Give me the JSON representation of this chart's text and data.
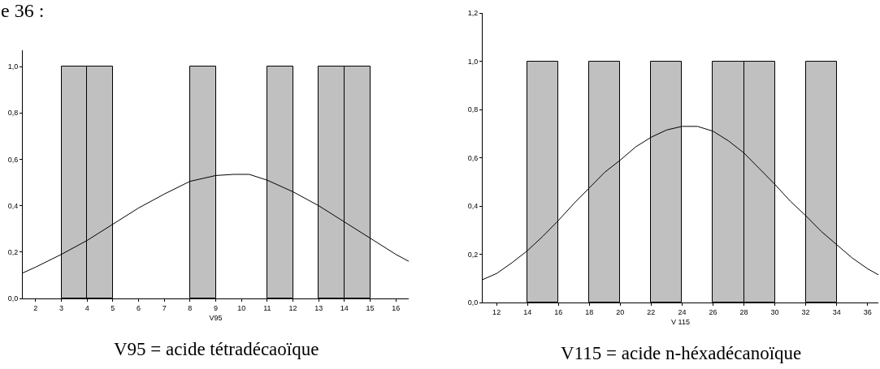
{
  "chart_data": [
    {
      "type": "histogram",
      "title": "e 36 :",
      "xlabel": "V95",
      "annotations": [
        "V95 = acide tétradécaoïque"
      ],
      "bins": [
        3,
        4,
        5,
        6,
        7,
        8,
        9,
        10,
        11,
        12,
        13,
        14,
        15
      ],
      "values": [
        1,
        1,
        0,
        0,
        0,
        1,
        0,
        0,
        1,
        0,
        1,
        1
      ],
      "color": "#c0c0c0",
      "series": [
        {
          "type": "line",
          "color": "#000000",
          "x": [
            1.5,
            2,
            3,
            4,
            5,
            6,
            7,
            8,
            9,
            9.7,
            10,
            10.3,
            11,
            12,
            13,
            14,
            15,
            16,
            16.5
          ],
          "values": [
            0.11,
            0.135,
            0.19,
            0.25,
            0.32,
            0.39,
            0.45,
            0.505,
            0.53,
            0.535,
            0.535,
            0.535,
            0.51,
            0.46,
            0.4,
            0.33,
            0.26,
            0.19,
            0.16
          ]
        }
      ],
      "xlim": [
        1.5,
        16.5
      ],
      "xticks": [
        2,
        3,
        4,
        5,
        6,
        7,
        8,
        9,
        10,
        11,
        12,
        13,
        14,
        15,
        16
      ],
      "ylim": [
        0,
        1.07
      ],
      "yticks": [
        {
          "value": 0,
          "label": "0,0"
        },
        {
          "value": 0.2,
          "label": "0,2"
        },
        {
          "value": 0.4,
          "label": "0,4"
        },
        {
          "value": 0.6,
          "label": "0,6"
        },
        {
          "value": 0.8,
          "label": "0,8"
        },
        {
          "value": 1,
          "label": "1,0"
        }
      ],
      "grid": false
    },
    {
      "type": "histogram",
      "xlabel": "V 115",
      "annotations": [
        "V115 = acide n-héxadécanoïque"
      ],
      "bins": [
        14,
        16,
        18,
        20,
        22,
        24,
        26,
        28,
        30,
        32,
        34
      ],
      "values": [
        1,
        0,
        1,
        0,
        1,
        0,
        1,
        1,
        0,
        1
      ],
      "color": "#c0c0c0",
      "series": [
        {
          "type": "line",
          "color": "#000000",
          "x": [
            11.1,
            12,
            13,
            14,
            15,
            16,
            17,
            18,
            19,
            20,
            21,
            22,
            23,
            24,
            25,
            26,
            27,
            28,
            29,
            30,
            31,
            32,
            33,
            34,
            35,
            36,
            36.7
          ],
          "values": [
            0.095,
            0.12,
            0.165,
            0.215,
            0.275,
            0.34,
            0.41,
            0.475,
            0.54,
            0.59,
            0.645,
            0.685,
            0.715,
            0.73,
            0.73,
            0.71,
            0.67,
            0.62,
            0.555,
            0.49,
            0.42,
            0.36,
            0.295,
            0.24,
            0.185,
            0.14,
            0.115
          ]
        }
      ],
      "xlim": [
        11.1,
        36.7
      ],
      "xticks": [
        12,
        14,
        16,
        18,
        20,
        22,
        24,
        26,
        28,
        30,
        32,
        34,
        36
      ],
      "ylim": [
        0,
        1.2
      ],
      "yticks": [
        {
          "value": 0,
          "label": "0,0"
        },
        {
          "value": 0.2,
          "label": "0,2"
        },
        {
          "value": 0.4,
          "label": "0,4"
        },
        {
          "value": 0.6,
          "label": "0,6"
        },
        {
          "value": 0.8,
          "label": "0,8"
        },
        {
          "value": 1,
          "label": "1,0"
        },
        {
          "value": 1.2,
          "label": "1,2"
        }
      ],
      "grid": false
    }
  ]
}
